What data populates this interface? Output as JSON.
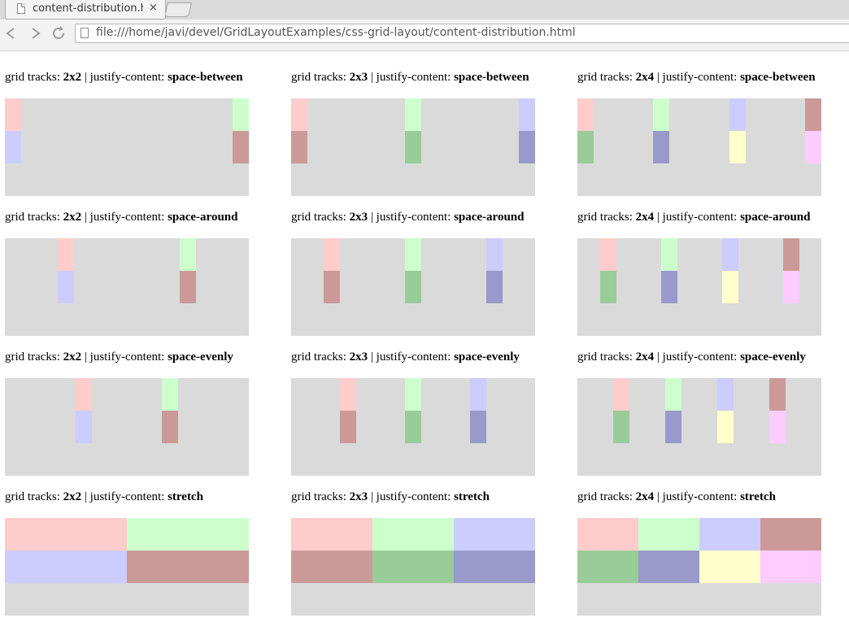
{
  "browser": {
    "tab_title": "content-distribution.html",
    "tab_close": "×",
    "url": "file:///home/javi/devel/GridLayoutExamples/css-grid-layout/content-distribution.html"
  },
  "labels": {
    "prefix": "grid tracks:",
    "separator": "| justify-content:"
  },
  "item_colors": {
    "pink": "#ffcccc",
    "light_green": "#ccffcc",
    "light_blue": "#ccccff",
    "mauve": "#cc9999",
    "green": "#99cc99",
    "blue": "#9999cc",
    "yellow": "#ffffcc",
    "magenta": "#ffccff"
  },
  "container_color": "#dadada",
  "demos": [
    {
      "tracks": "2x2",
      "justify": "space-between",
      "cols": 2,
      "colors": [
        "pink",
        "light_green",
        "light_blue",
        "mauve"
      ]
    },
    {
      "tracks": "2x3",
      "justify": "space-between",
      "cols": 3,
      "colors": [
        "pink",
        "light_green",
        "light_blue",
        "mauve",
        "green",
        "blue"
      ]
    },
    {
      "tracks": "2x4",
      "justify": "space-between",
      "cols": 4,
      "colors": [
        "pink",
        "light_green",
        "light_blue",
        "mauve",
        "green",
        "blue",
        "yellow",
        "magenta"
      ]
    },
    {
      "tracks": "2x2",
      "justify": "space-around",
      "cols": 2,
      "colors": [
        "pink",
        "light_green",
        "light_blue",
        "mauve"
      ]
    },
    {
      "tracks": "2x3",
      "justify": "space-around",
      "cols": 3,
      "colors": [
        "pink",
        "light_green",
        "light_blue",
        "mauve",
        "green",
        "blue"
      ]
    },
    {
      "tracks": "2x4",
      "justify": "space-around",
      "cols": 4,
      "colors": [
        "pink",
        "light_green",
        "light_blue",
        "mauve",
        "green",
        "blue",
        "yellow",
        "magenta"
      ]
    },
    {
      "tracks": "2x2",
      "justify": "space-evenly",
      "cols": 2,
      "colors": [
        "pink",
        "light_green",
        "light_blue",
        "mauve"
      ]
    },
    {
      "tracks": "2x3",
      "justify": "space-evenly",
      "cols": 3,
      "colors": [
        "pink",
        "light_green",
        "light_blue",
        "mauve",
        "green",
        "blue"
      ]
    },
    {
      "tracks": "2x4",
      "justify": "space-evenly",
      "cols": 4,
      "colors": [
        "pink",
        "light_green",
        "light_blue",
        "mauve",
        "green",
        "blue",
        "yellow",
        "magenta"
      ]
    },
    {
      "tracks": "2x2",
      "justify": "stretch",
      "cols": 2,
      "colors": [
        "pink",
        "light_green",
        "light_blue",
        "mauve"
      ]
    },
    {
      "tracks": "2x3",
      "justify": "stretch",
      "cols": 3,
      "colors": [
        "pink",
        "light_green",
        "light_blue",
        "mauve",
        "green",
        "blue"
      ]
    },
    {
      "tracks": "2x4",
      "justify": "stretch",
      "cols": 4,
      "colors": [
        "pink",
        "light_green",
        "light_blue",
        "mauve",
        "green",
        "blue",
        "yellow",
        "magenta"
      ]
    }
  ]
}
